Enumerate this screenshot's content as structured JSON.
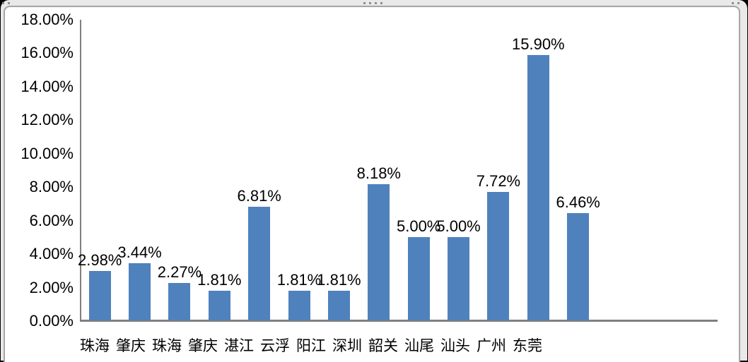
{
  "chart_data": {
    "type": "bar",
    "categories": [
      "珠海",
      "肇庆",
      "珠海",
      "肇庆",
      "湛江",
      "云浮",
      "阳江",
      "深圳",
      "韶关",
      "汕尾",
      "汕头",
      "广州",
      "东莞"
    ],
    "values": [
      2.98,
      3.44,
      2.27,
      1.81,
      6.81,
      1.81,
      1.81,
      8.18,
      5.0,
      5.0,
      7.72,
      15.9,
      6.46
    ],
    "data_labels": [
      "2.98%",
      "3.44%",
      "2.27%",
      "1.81%",
      "6.81%",
      "1.81%",
      "1.81%",
      "8.18%",
      "5.00%",
      "5.00%",
      "7.72%",
      "15.90%",
      "6.46%"
    ],
    "y_tick_labels": [
      "18.00%",
      "16.00%",
      "14.00%",
      "12.00%",
      "10.00%",
      "8.00%",
      "6.00%",
      "4.00%",
      "2.00%",
      "0.00%"
    ],
    "ylim": [
      0,
      18
    ],
    "y_tick_step": 2,
    "title": "",
    "xlabel": "",
    "ylabel": "",
    "grid": false,
    "legend": false,
    "bar_color": "#4F81BD",
    "axis_color": "#7F7F7F",
    "layout": {
      "total_category_slots": 16,
      "x_labels_left_aligned": true
    }
  }
}
